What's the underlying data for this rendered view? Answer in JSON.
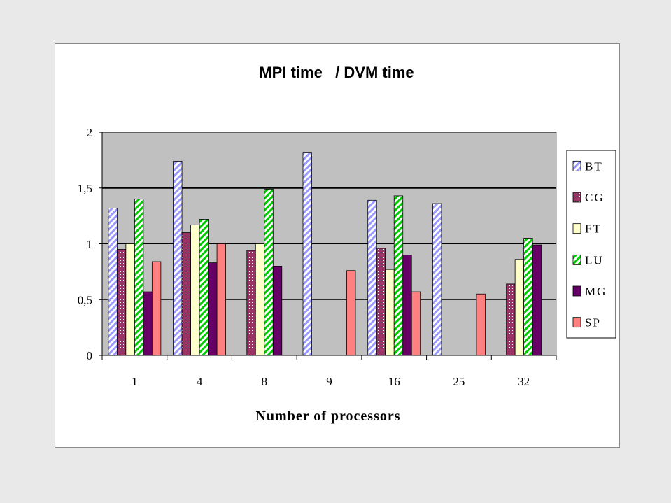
{
  "chart_data": {
    "type": "bar",
    "title": "MPI time   / DVM time",
    "xlabel": "Number of processors",
    "ylabel": "",
    "ylim": [
      0,
      2
    ],
    "yticks": [
      "0",
      "0,5",
      "1",
      "1,5",
      "2"
    ],
    "ytick_values": [
      0,
      0.5,
      1,
      1.5,
      2
    ],
    "categories": [
      "1",
      "4",
      "8",
      "9",
      "16",
      "25",
      "32"
    ],
    "series": [
      {
        "name": "BT",
        "color": "#9999ff",
        "pattern": "diagonal-stripes",
        "values": [
          1.32,
          1.74,
          null,
          1.82,
          1.39,
          1.36,
          null
        ]
      },
      {
        "name": "CG",
        "color": "#993366",
        "pattern": "dots",
        "values": [
          0.95,
          1.1,
          0.94,
          null,
          0.96,
          null,
          0.64
        ]
      },
      {
        "name": "FT",
        "color": "#ffffcc",
        "pattern": "solid",
        "values": [
          1.0,
          1.17,
          1.0,
          null,
          0.77,
          null,
          0.86
        ]
      },
      {
        "name": "LU",
        "color": "#00cc00",
        "pattern": "diagonal-stripes",
        "values": [
          1.4,
          1.22,
          1.49,
          null,
          1.43,
          null,
          1.05
        ]
      },
      {
        "name": "MG",
        "color": "#660066",
        "pattern": "solid",
        "values": [
          0.57,
          0.83,
          0.8,
          null,
          0.9,
          null,
          0.99
        ]
      },
      {
        "name": "SP",
        "color": "#ff8080",
        "pattern": "solid",
        "values": [
          0.84,
          1.0,
          null,
          0.76,
          0.57,
          0.55,
          null
        ]
      }
    ],
    "plot_background": "#c0c0c0",
    "grid": true,
    "legend_position": "right"
  }
}
